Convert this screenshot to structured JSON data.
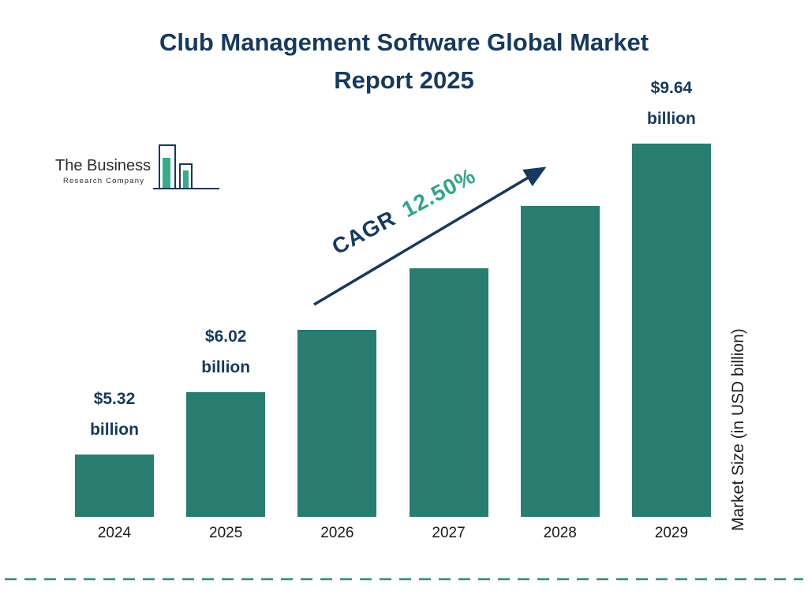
{
  "title": {
    "line1": "Club Management Software Global Market",
    "line2": "Report 2025"
  },
  "logo": {
    "line1": "The Business",
    "line2": "Research Company"
  },
  "cagr": {
    "label": "CAGR",
    "value": "12.50%"
  },
  "axis": {
    "y_label": "Market Size (in USD billion)"
  },
  "chart_data": {
    "type": "bar",
    "title": "Club Management Software Global Market Report 2025",
    "categories": [
      "2024",
      "2025",
      "2026",
      "2027",
      "2028",
      "2029"
    ],
    "values": [
      5.32,
      6.02,
      6.77,
      7.62,
      8.57,
      9.64
    ],
    "unit": "USD billion",
    "ylabel": "Market Size (in USD billion)",
    "cagr_percent": "12.50%",
    "legend_position": "none",
    "grid": false,
    "value_labels": [
      {
        "index": 0,
        "amount": "$5.32",
        "unit": "billion"
      },
      {
        "index": 1,
        "amount": "$6.02",
        "unit": "billion"
      },
      {
        "index": 5,
        "amount": "$9.64",
        "unit": "billion"
      }
    ]
  },
  "colors": {
    "bar": "#287d6e",
    "navy": "#16395f",
    "teal_text": "#2fa58c",
    "dashed_line": "#2a8f7f"
  }
}
